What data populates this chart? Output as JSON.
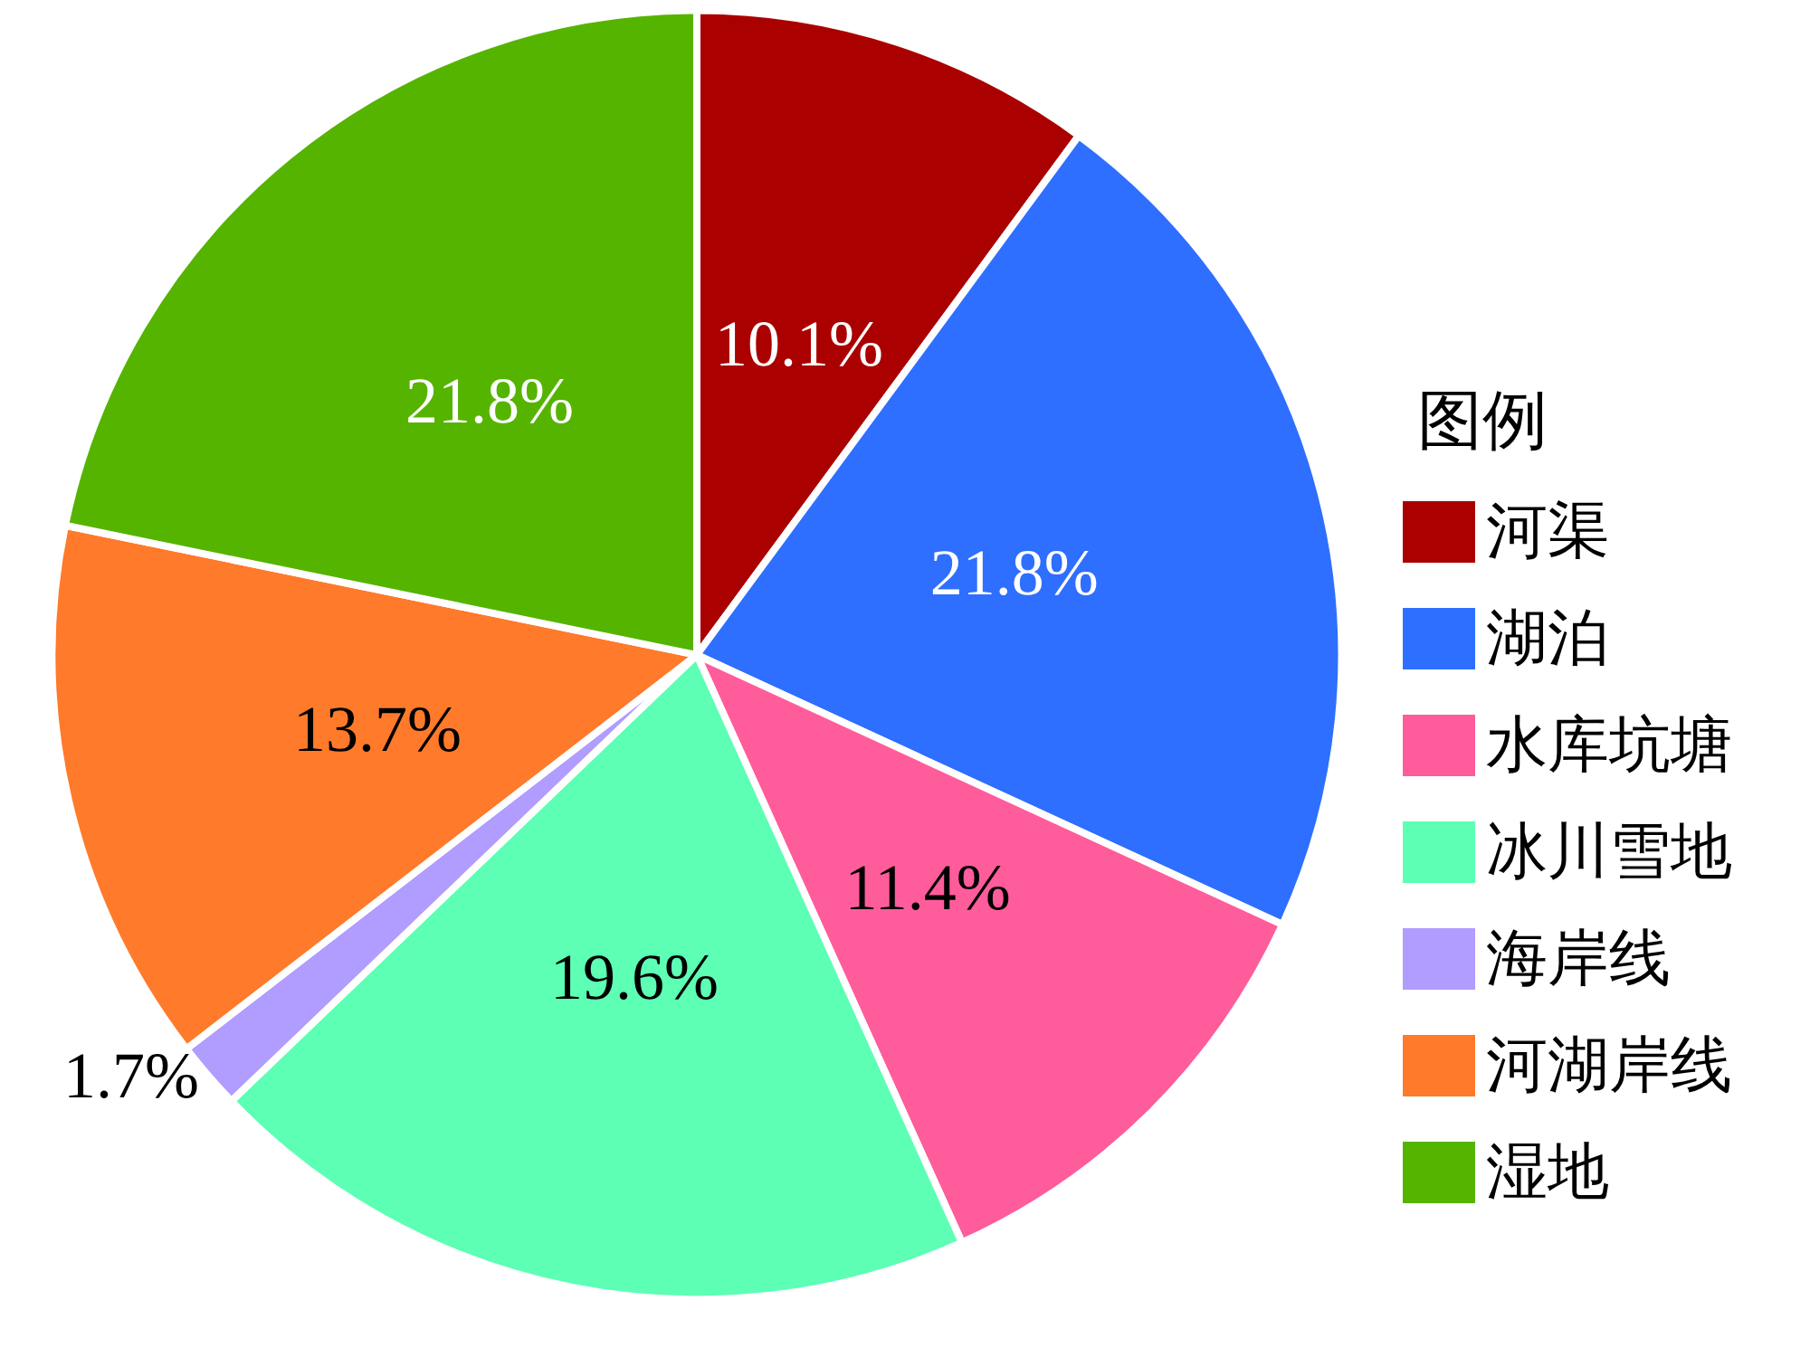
{
  "chart_data": {
    "type": "pie",
    "legend_title": "图例",
    "categories": [
      "河渠",
      "湖泊",
      "水库坑塘",
      "冰川雪地",
      "海岸线",
      "河湖岸线",
      "湿地"
    ],
    "values": [
      10.1,
      21.8,
      11.4,
      19.6,
      1.7,
      13.7,
      21.8
    ],
    "colors": [
      "#aa0000",
      "#2e6fff",
      "#ff5c9c",
      "#5cffb4",
      "#b19cff",
      "#ff7a2a",
      "#55b400"
    ],
    "value_labels": [
      "10.1%",
      "21.8%",
      "11.4%",
      "19.6%",
      "1.7%",
      "13.7%",
      "21.8%"
    ],
    "legend": "right"
  }
}
